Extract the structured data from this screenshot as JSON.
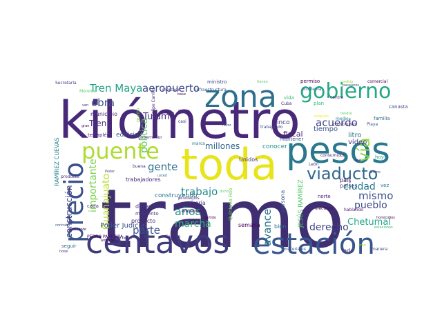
{
  "words": [
    {
      "text": "tramo",
      "color": "#3f2f72"
    },
    {
      "text": "kilómetro",
      "color": "#482878"
    },
    {
      "text": "centavos",
      "color": "#3e3b7c"
    },
    {
      "text": "estación",
      "color": "#39568c"
    },
    {
      "text": "toda",
      "color": "#e7e419"
    },
    {
      "text": "pesos",
      "color": "#2a788e"
    },
    {
      "text": "zona",
      "color": "#2d6f8e"
    },
    {
      "text": "gobierno",
      "color": "#26a784"
    },
    {
      "text": "puente",
      "color": "#addc30"
    },
    {
      "text": "precio",
      "color": "#3b528b"
    },
    {
      "text": "viaducto",
      "color": "#31688e"
    },
    {
      "text": "Tren Maya",
      "color": "#20a386"
    },
    {
      "text": "aeropuerto",
      "color": "#3e4a89"
    },
    {
      "text": "obra",
      "color": "#3b528b"
    },
    {
      "text": "acuerdo",
      "color": "#404588"
    },
    {
      "text": "mismo",
      "color": "#3b528b"
    },
    {
      "text": "pueblo",
      "color": "#3e4a89"
    },
    {
      "text": "vía",
      "color": "#8fd744"
    },
    {
      "text": "gente",
      "color": "#2c728e"
    },
    {
      "text": "trabajo",
      "color": "#23898e"
    },
    {
      "text": "marcha",
      "color": "#35b779"
    },
    {
      "text": "años",
      "color": "#21918c"
    },
    {
      "text": "parte",
      "color": "#3b528b"
    },
    {
      "text": "avance",
      "color": "#2a788e"
    },
    {
      "text": "derecho",
      "color": "#414487"
    },
    {
      "text": "Chetumal",
      "color": "#22a884"
    },
    {
      "text": "ciudad",
      "color": "#2a788e"
    },
    {
      "text": "millones",
      "color": "#31688e"
    },
    {
      "text": "importante",
      "color": "#7ad151"
    },
    {
      "text": "construcción",
      "color": "#414487"
    },
    {
      "text": "Guanajuato",
      "color": "#b8de29"
    },
    {
      "text": "política",
      "color": "#5ec962"
    },
    {
      "text": "Tulum",
      "color": "#46337e"
    },
    {
      "text": "Tren",
      "color": "#46327e"
    },
    {
      "text": "fiscal",
      "color": "#482475"
    },
    {
      "text": "tiempo",
      "color": "#3b528b"
    },
    {
      "text": "litro",
      "color": "#2c728e"
    },
    {
      "text": "vídeo",
      "color": "#443a83"
    },
    {
      "text": "conocer",
      "color": "#21918c"
    },
    {
      "text": "Unidos",
      "color": "#472d7b"
    },
    {
      "text": "cinco",
      "color": "#46327e"
    },
    {
      "text": "Poder Judicial",
      "color": "#3b528b"
    },
    {
      "text": "proyecto",
      "color": "#472d7b"
    },
    {
      "text": "momento",
      "color": "#46327e"
    },
    {
      "text": "diciembre",
      "color": "#46337e"
    },
    {
      "text": "construyendo",
      "color": "#2a788e"
    },
    {
      "text": "trabajadores",
      "color": "#482878"
    },
    {
      "text": "semana",
      "color": "#440154"
    },
    {
      "text": "bien",
      "color": "#2c728e"
    },
    {
      "text": "persona",
      "color": "#3b528b"
    },
    {
      "text": "JESÚS RAMÍREZ",
      "color": "#52c569"
    },
    {
      "text": "RAMÍREZ CUEVAS",
      "color": "#26828e"
    },
    {
      "text": "Quintana Roo",
      "color": "#6ece58"
    },
    {
      "text": "mayoría",
      "color": "#482878"
    },
    {
      "text": "norte",
      "color": "#481a6c"
    },
    {
      "text": "eléctrico",
      "color": "#440154"
    },
    {
      "text": "países",
      "color": "#3e4a89"
    },
    {
      "text": "país",
      "color": "#440154"
    },
    {
      "text": "vez",
      "color": "#2a788e"
    },
    {
      "text": "hoy",
      "color": "#22a884"
    },
    {
      "text": "León",
      "color": "#482878"
    },
    {
      "text": "plan",
      "color": "#35b779"
    },
    {
      "text": "centro",
      "color": "#482878"
    },
    {
      "text": "problema",
      "color": "#31688e"
    },
    {
      "text": "permiso",
      "color": "#440154"
    },
    {
      "text": "ministro",
      "color": "#3e4a89"
    },
    {
      "text": "infraestructura",
      "color": "#3b528b"
    },
    {
      "text": "mercado",
      "color": "#46337e"
    },
    {
      "text": "municipio",
      "color": "#482878"
    },
    {
      "text": "terraplén",
      "color": "#482475"
    },
    {
      "text": "Morelos",
      "color": "#5ec962"
    },
    {
      "text": "Secretaría",
      "color": "#46327e"
    },
    {
      "text": "seguir",
      "color": "#31688e"
    },
    {
      "text": "hotel",
      "color": "#482878"
    },
    {
      "text": "PEDRO PARREIRA",
      "color": "#440154"
    },
    {
      "text": "materiales",
      "color": "#3b528b"
    },
    {
      "text": "lado",
      "color": "#482878"
    },
    {
      "text": "manera",
      "color": "#414487"
    },
    {
      "text": "estaciones",
      "color": "#3fbc73"
    },
    {
      "text": "edificio",
      "color": "#3b528b"
    },
    {
      "text": "vida",
      "color": "#35b779"
    },
    {
      "text": "Cuba",
      "color": "#482475"
    },
    {
      "text": "trabajando",
      "color": "#3e4a89"
    },
    {
      "text": "familia",
      "color": "#31688e"
    },
    {
      "text": "Playa",
      "color": "#3b528b"
    },
    {
      "text": "medio",
      "color": "#26828e"
    },
    {
      "text": "construyen",
      "color": "#472d7b"
    },
    {
      "text": "canasta",
      "color": "#3e4a89"
    },
    {
      "text": "sur",
      "color": "#482878"
    },
    {
      "text": "consumidor",
      "color": "#481a6c"
    },
    {
      "text": "comercial",
      "color": "#440154"
    },
    {
      "text": "gobernador",
      "color": "#472d7b"
    },
    {
      "text": "casi",
      "color": "#46327e"
    },
    {
      "text": "marca",
      "color": "#2a788e"
    },
    {
      "text": "base",
      "color": "#440154"
    },
    {
      "text": "mantener",
      "color": "#3b528b"
    },
    {
      "text": "sólo",
      "color": "#46337e"
    },
    {
      "text": "producto",
      "color": "#482878"
    },
    {
      "text": "embargo",
      "color": "#440154"
    },
    {
      "text": "Cancún",
      "color": "#482878"
    },
    {
      "text": "buena",
      "color": "#46337e"
    },
    {
      "text": "Poder",
      "color": "#414487"
    },
    {
      "text": "amparo",
      "color": "#440154"
    },
    {
      "text": "durmiente",
      "color": "#440154"
    },
    {
      "text": "contrato",
      "color": "#3b528b"
    },
    {
      "text": "privilegios",
      "color": "#46327e"
    },
    {
      "text": "cada",
      "color": "#472d7b"
    },
    {
      "text": "punto",
      "color": "#7ad151"
    },
    {
      "text": "Felipe Carrillo",
      "color": "#472d7b"
    },
    {
      "text": "partido",
      "color": "#440154"
    },
    {
      "text": "menos",
      "color": "#482878"
    },
    {
      "text": "dicho",
      "color": "#5ec962"
    },
    {
      "text": "medida",
      "color": "#9fda3a"
    },
    {
      "text": "tienen",
      "color": "#5ec962"
    },
    {
      "text": "después",
      "color": "#fde725"
    },
    {
      "text": "último",
      "color": "#3e4a89"
    },
    {
      "text": "homicidios",
      "color": "#440154"
    },
    {
      "text": "hablando",
      "color": "#481a6c"
    },
    {
      "text": "creo",
      "color": "#c2df23"
    },
    {
      "text": "pasajeros",
      "color": "#3b528b"
    },
    {
      "text": "tendrá",
      "color": "#5ec962"
    },
    {
      "text": "ven",
      "color": "#482878"
    },
    {
      "text": "gran",
      "color": "#440154"
    },
    {
      "text": "José Pedro",
      "color": "#46327e"
    },
    {
      "text": "favor",
      "color": "#3b528b"
    },
    {
      "text": "usted",
      "color": "#2a788e"
    },
    {
      "text": "nuevo",
      "color": "#2c728e"
    }
  ]
}
